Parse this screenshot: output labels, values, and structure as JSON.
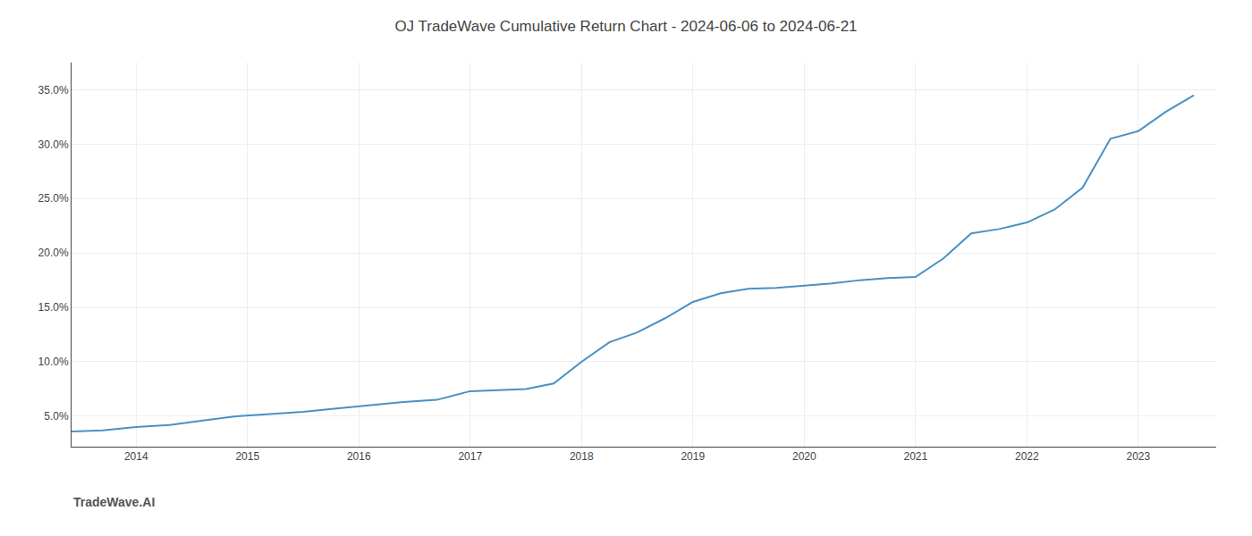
{
  "chart_data": {
    "type": "line",
    "title": "OJ TradeWave Cumulative Return Chart - 2024-06-06 to 2024-06-21",
    "annotations": [
      "TradeWave.AI"
    ],
    "x": [
      2013.42,
      2013.7,
      2014.0,
      2014.3,
      2014.6,
      2014.9,
      2015.2,
      2015.5,
      2015.8,
      2016.1,
      2016.4,
      2016.7,
      2017.0,
      2017.25,
      2017.5,
      2017.75,
      2018.0,
      2018.25,
      2018.5,
      2018.75,
      2019.0,
      2019.25,
      2019.5,
      2019.75,
      2020.0,
      2020.25,
      2020.5,
      2020.75,
      2021.0,
      2021.25,
      2021.5,
      2021.75,
      2022.0,
      2022.25,
      2022.5,
      2022.75,
      2023.0,
      2023.25,
      2023.5
    ],
    "values": [
      0.036,
      0.037,
      0.04,
      0.042,
      0.046,
      0.05,
      0.052,
      0.054,
      0.057,
      0.06,
      0.063,
      0.065,
      0.073,
      0.074,
      0.075,
      0.08,
      0.1,
      0.118,
      0.127,
      0.14,
      0.155,
      0.163,
      0.167,
      0.168,
      0.17,
      0.172,
      0.175,
      0.177,
      0.178,
      0.195,
      0.218,
      0.222,
      0.228,
      0.24,
      0.26,
      0.305,
      0.312,
      0.33,
      0.345
    ],
    "color": "#4a90c4",
    "xlim": [
      2013.42,
      2023.7
    ],
    "xticks": [
      2014,
      2015,
      2016,
      2017,
      2018,
      2019,
      2020,
      2021,
      2022,
      2023
    ],
    "ylim": [
      0.022,
      0.375
    ],
    "yticks": [
      {
        "value": 0.05,
        "label": "5.0%"
      },
      {
        "value": 0.1,
        "label": "10.0%"
      },
      {
        "value": 0.15,
        "label": "15.0%"
      },
      {
        "value": 0.2,
        "label": "20.0%"
      },
      {
        "value": 0.25,
        "label": "25.0%"
      },
      {
        "value": 0.3,
        "label": "30.0%"
      },
      {
        "value": 0.35,
        "label": "35.0%"
      }
    ],
    "grid": true
  }
}
